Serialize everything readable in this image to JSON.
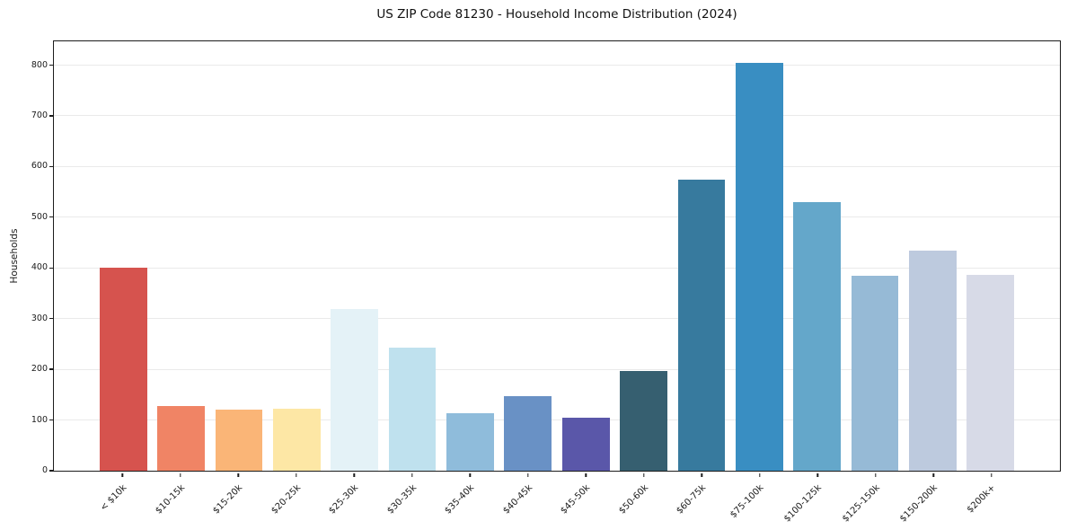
{
  "figure": {
    "title": "US ZIP Code 81230 - Household Income Distribution (2024)"
  },
  "chart_data": {
    "type": "bar",
    "title": "US ZIP Code 81230 - Household Income Distribution (2024)",
    "xlabel": "",
    "ylabel": "Households",
    "categories": [
      "< $10k",
      "$10-15k",
      "$15-20k",
      "$20-25k",
      "$25-30k",
      "$30-35k",
      "$35-40k",
      "$40-45k",
      "$45-50k",
      "$50-60k",
      "$60-75k",
      "$75-100k",
      "$100-125k",
      "$125-150k",
      "$150-200k",
      "$200k+"
    ],
    "values": [
      400,
      127,
      121,
      122,
      319,
      242,
      114,
      147,
      104,
      196,
      575,
      805,
      530,
      385,
      434,
      387
    ],
    "bar_colors": [
      "#d6534e",
      "#f08465",
      "#fab577",
      "#fde7a5",
      "#e4f2f7",
      "#bfe1ee",
      "#8fbcdb",
      "#6991c5",
      "#5a57a9",
      "#365f70",
      "#377a9e",
      "#398ec2",
      "#64a7ca",
      "#96bad6",
      "#bdcade",
      "#d7dae7"
    ],
    "ylim": [
      0,
      847
    ],
    "yticks": [
      0,
      100,
      200,
      300,
      400,
      500,
      600,
      700,
      800
    ],
    "grid": "horizontal-only",
    "legend": "none",
    "x_tick_rotation_deg": 45
  },
  "colors": {
    "background": "#ffffff",
    "axis": "#1c1c1c",
    "gridline": "#eaeaea",
    "text": "#1a1a1a"
  }
}
